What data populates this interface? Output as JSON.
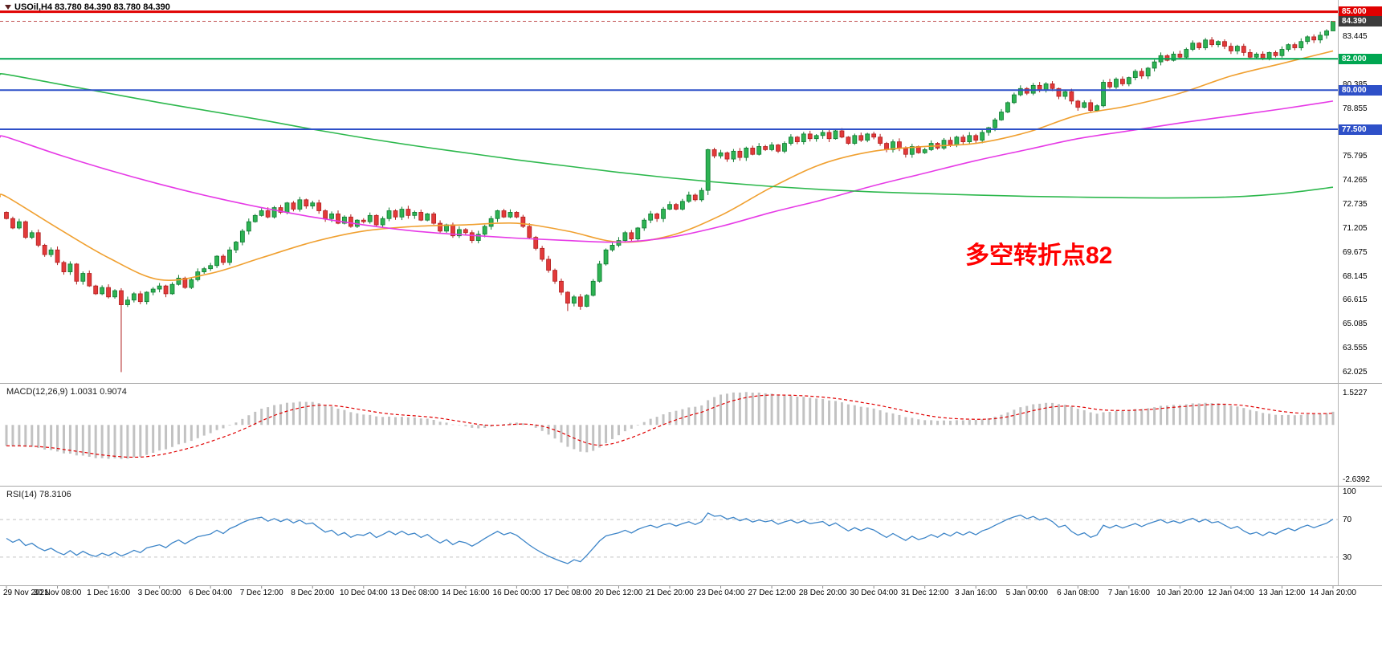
{
  "main_chart": {
    "title": "USOil,H4 83.780 84.390 83.780 84.390",
    "annotation": "多空转折点82",
    "annotation_color": "#ff0000",
    "y_axis_labels": [
      "83.445",
      "81.915",
      "80.385",
      "78.855",
      "77.325",
      "75.795",
      "74.265",
      "72.735",
      "71.205",
      "69.675",
      "68.145",
      "66.615",
      "65.085",
      "63.555",
      "62.025"
    ],
    "price_badges": [
      {
        "label": "85.000",
        "price": 85.0,
        "color": "#e00000"
      },
      {
        "label": "84.390",
        "price": 84.39,
        "color": "#3c3c3c"
      },
      {
        "label": "82.000",
        "price": 82.0,
        "color": "#00a651"
      },
      {
        "label": "80.000",
        "price": 80.0,
        "color": "#2e50c8"
      },
      {
        "label": "77.500",
        "price": 77.5,
        "color": "#2e50c8"
      }
    ]
  },
  "macd": {
    "name": "MACD(12,26,9)",
    "main_value": "1.0031",
    "signal_value": "0.9074",
    "axis_labels": [
      "1.5227",
      "-2.6392"
    ],
    "histogram_color": "#c2c2c2",
    "signal_color": "#e00000"
  },
  "rsi": {
    "name": "RSI(14)",
    "value": "78.3106",
    "axis_labels": [
      "100",
      "70",
      "30"
    ],
    "levels": [
      70,
      30
    ],
    "line_color": "#3d85c8"
  },
  "x_axis": {
    "labels": [
      "29 Nov 2021",
      "30 Nov 08:00",
      "1 Dec 16:00",
      "3 Dec 00:00",
      "6 Dec 04:00",
      "7 Dec 12:00",
      "8 Dec 20:00",
      "10 Dec 04:00",
      "13 Dec 08:00",
      "14 Dec 16:00",
      "16 Dec 00:00",
      "17 Dec 08:00",
      "20 Dec 12:00",
      "21 Dec 20:00",
      "23 Dec 04:00",
      "27 Dec 12:00",
      "28 Dec 20:00",
      "30 Dec 04:00",
      "31 Dec 12:00",
      "3 Jan 16:00",
      "5 Jan 00:00",
      "6 Jan 08:00",
      "7 Jan 16:00",
      "10 Jan 20:00",
      "12 Jan 04:00",
      "13 Jan 12:00",
      "14 Jan 20:00"
    ]
  },
  "chart_data": {
    "type": "candlestick",
    "symbol": "USOil",
    "timeframe": "H4",
    "current_bar": {
      "open": 83.78,
      "high": 84.39,
      "low": 83.78,
      "close": 84.39
    },
    "price_axis": {
      "min": 62.025,
      "max": 85.0,
      "step": 1.53
    },
    "open_first": 72.2,
    "closes": [
      71.8,
      71.2,
      71.6,
      70.6,
      70.9,
      70.1,
      69.5,
      69.8,
      69.0,
      68.4,
      68.9,
      67.8,
      68.3,
      67.5,
      67.0,
      67.4,
      66.8,
      67.2,
      66.3,
      66.6,
      67.0,
      66.5,
      67.1,
      67.3,
      67.5,
      67.0,
      67.6,
      68.0,
      67.4,
      67.9,
      68.4,
      68.6,
      68.8,
      69.4,
      69.0,
      69.8,
      70.3,
      71.0,
      71.6,
      72.0,
      72.3,
      71.9,
      72.5,
      72.2,
      72.8,
      72.4,
      73.0,
      72.6,
      72.8,
      72.3,
      71.8,
      72.1,
      71.5,
      71.9,
      71.3,
      71.7,
      71.6,
      72.0,
      71.4,
      71.8,
      72.3,
      71.9,
      72.4,
      72.0,
      72.2,
      71.7,
      72.1,
      71.5,
      71.0,
      71.4,
      70.7,
      71.1,
      70.9,
      70.4,
      70.8,
      71.3,
      71.8,
      72.3,
      71.9,
      72.2,
      71.9,
      71.3,
      70.6,
      69.9,
      69.2,
      68.5,
      67.8,
      67.1,
      66.4,
      66.8,
      66.2,
      66.9,
      67.8,
      68.9,
      69.8,
      70.1,
      70.4,
      70.9,
      70.5,
      71.2,
      71.7,
      72.1,
      71.8,
      72.4,
      72.7,
      72.4,
      72.9,
      73.3,
      73.0,
      73.6,
      76.2,
      75.8,
      76.0,
      75.6,
      76.1,
      75.7,
      76.3,
      75.9,
      76.4,
      76.2,
      76.5,
      76.1,
      76.6,
      77.0,
      76.7,
      77.2,
      76.9,
      77.1,
      77.3,
      76.9,
      77.4,
      77.0,
      76.6,
      77.1,
      76.8,
      77.2,
      77.0,
      76.6,
      76.2,
      76.7,
      76.3,
      75.9,
      76.4,
      76.0,
      76.2,
      76.6,
      76.3,
      76.8,
      76.5,
      77.0,
      76.7,
      77.1,
      76.8,
      77.3,
      77.6,
      78.1,
      78.6,
      79.2,
      79.7,
      80.1,
      79.8,
      80.3,
      80.0,
      80.4,
      80.1,
      79.6,
      79.9,
      79.3,
      78.9,
      79.2,
      78.7,
      79.0,
      80.5,
      80.2,
      80.7,
      80.4,
      80.8,
      81.2,
      80.9,
      81.4,
      81.8,
      82.2,
      81.9,
      82.3,
      82.1,
      82.6,
      83.0,
      82.7,
      83.2,
      82.9,
      83.1,
      82.8,
      82.5,
      82.8,
      82.4,
      82.1,
      82.3,
      82.0,
      82.4,
      82.2,
      82.6,
      82.9,
      82.7,
      83.1,
      83.4,
      83.2,
      83.5,
      83.78,
      84.39
    ],
    "wick_overrides": {
      "18": {
        "low": 62.0
      },
      "88": {
        "low": 65.9
      },
      "110": {
        "low": 73.3
      },
      "208": {
        "high": 84.39,
        "low": 83.78
      }
    },
    "hlines": [
      {
        "price": 85.0,
        "color": "#e00000",
        "width": 3
      },
      {
        "price": 82.0,
        "color": "#00a651",
        "width": 2
      },
      {
        "price": 80.0,
        "color": "#2e50c8",
        "width": 2
      },
      {
        "price": 77.5,
        "color": "#2e50c8",
        "width": 2
      }
    ],
    "moving_averages": [
      {
        "name": "ma-fast",
        "color": "#f0a030",
        "anchors": [
          73.2,
          71.2,
          69.3,
          67.9,
          68.3,
          69.3,
          70.3,
          71.0,
          71.3,
          71.4,
          71.5,
          71.0,
          70.3,
          70.7,
          72.0,
          73.8,
          75.3,
          76.1,
          76.4,
          76.6,
          77.3,
          78.4,
          79.0,
          79.8,
          80.9,
          81.7,
          82.5
        ]
      },
      {
        "name": "ma-medium",
        "color": "#e63ae6",
        "anchors": [
          77.0,
          75.9,
          74.9,
          74.0,
          73.2,
          72.5,
          71.9,
          71.4,
          71.0,
          70.75,
          70.55,
          70.4,
          70.3,
          70.6,
          71.3,
          72.2,
          73.0,
          73.9,
          74.7,
          75.5,
          76.2,
          76.9,
          77.4,
          77.9,
          78.35,
          78.8,
          79.3
        ]
      },
      {
        "name": "ma-slow",
        "color": "#2db84d",
        "anchors": [
          81.0,
          80.4,
          79.8,
          79.2,
          78.65,
          78.1,
          77.5,
          76.95,
          76.45,
          76.0,
          75.55,
          75.15,
          74.75,
          74.4,
          74.1,
          73.85,
          73.65,
          73.5,
          73.4,
          73.3,
          73.22,
          73.17,
          73.13,
          73.12,
          73.18,
          73.4,
          73.8
        ]
      }
    ],
    "indicator_settings": {
      "macd": {
        "fast": 12,
        "slow": 26,
        "signal": 9
      },
      "rsi": {
        "period": 14
      }
    }
  }
}
